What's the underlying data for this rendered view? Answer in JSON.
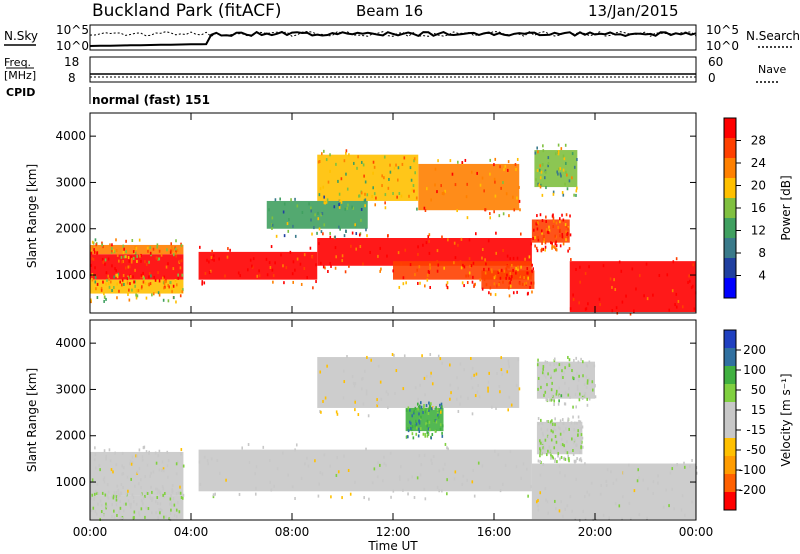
{
  "header": {
    "site": "Buckland Park (fitACF)",
    "beam": "Beam 16",
    "date": "13/Jan/2015"
  },
  "strip_labels": {
    "nsky": "N.Sky",
    "nsearch": "N.Search",
    "freq_line1": "Freq.",
    "freq_line2": "[MHz]",
    "nave": "Nave",
    "cpid": "CPID",
    "cpid_value": "normal (fast) 151",
    "noise_ticks_left": [
      "10^5",
      "10^0"
    ],
    "noise_ticks_right": [
      "10^5",
      "10^0"
    ],
    "freq_ticks": [
      "18",
      "8"
    ],
    "nave_ticks": [
      "60",
      "0"
    ]
  },
  "colors": {
    "power": [
      "#0000ff",
      "#2040a0",
      "#3a7a8a",
      "#40a060",
      "#80c040",
      "#ffc000",
      "#ff8000",
      "#ff4000",
      "#ff0000"
    ],
    "velocity": [
      "#ff0000",
      "#ff6000",
      "#ff9c00",
      "#ffc000",
      "#c8c8c8",
      "#c8c8c8",
      "#80d040",
      "#40b040",
      "#3070a0",
      "#2040c0"
    ],
    "ground": "#c0c0c0"
  },
  "chart_data": [
    {
      "type": "heatmap",
      "name": "power",
      "ylabel": "Slant Range [km]",
      "xlabel": "",
      "x_ticks": [
        "00:00",
        "04:00",
        "08:00",
        "12:00",
        "16:00",
        "20:00",
        "00:00"
      ],
      "xlim_hours": [
        0,
        24
      ],
      "y_ticks": [
        1000,
        2000,
        3000,
        4000
      ],
      "ylim_km": [
        180,
        4500
      ],
      "colorbar_label": "Power [dB]",
      "colorbar_ticks": [
        "28",
        "24",
        "20",
        "16",
        "12",
        "8",
        "4"
      ],
      "colorbar_range": [
        0,
        30
      ],
      "bands": [
        {
          "t0": 0.0,
          "t1": 3.7,
          "r0": 900,
          "r1": 1450,
          "level": 28
        },
        {
          "t0": 0.0,
          "t1": 3.7,
          "r0": 1450,
          "r1": 1650,
          "level": 20
        },
        {
          "t0": 0.0,
          "t1": 3.7,
          "r0": 600,
          "r1": 900,
          "level": 18
        },
        {
          "t0": 4.3,
          "t1": 9.0,
          "r0": 900,
          "r1": 1500,
          "level": 28
        },
        {
          "t0": 9.0,
          "t1": 17.5,
          "r0": 1200,
          "r1": 1800,
          "level": 27
        },
        {
          "t0": 12.0,
          "t1": 17.5,
          "r0": 900,
          "r1": 1300,
          "level": 24
        },
        {
          "t0": 17.5,
          "t1": 19.0,
          "r0": 1700,
          "r1": 2200,
          "level": 26
        },
        {
          "t0": 19.0,
          "t1": 24.0,
          "r0": 200,
          "r1": 1300,
          "level": 28
        },
        {
          "t0": 13.0,
          "t1": 17.0,
          "r0": 2400,
          "r1": 3400,
          "level": 22
        },
        {
          "t0": 9.0,
          "t1": 13.0,
          "r0": 2600,
          "r1": 3600,
          "level": 18
        },
        {
          "t0": 7.0,
          "t1": 11.0,
          "r0": 2000,
          "r1": 2600,
          "level": 12
        },
        {
          "t0": 17.6,
          "t1": 19.3,
          "r0": 2900,
          "r1": 3700,
          "level": 14
        },
        {
          "t0": 15.5,
          "t1": 17.6,
          "r0": 700,
          "r1": 1100,
          "level": 26
        }
      ]
    },
    {
      "type": "heatmap",
      "name": "velocity",
      "ylabel": "Slant Range [km]",
      "xlabel": "Time UT",
      "x_ticks": [
        "00:00",
        "04:00",
        "08:00",
        "12:00",
        "16:00",
        "20:00",
        "00:00"
      ],
      "xlim_hours": [
        0,
        24
      ],
      "y_ticks": [
        1000,
        2000,
        3000,
        4000
      ],
      "ylim_km": [
        180,
        4500
      ],
      "colorbar_label": "Velocity [m s⁻¹]",
      "colorbar_ticks": [
        "200",
        "100",
        "50",
        "15",
        "-15",
        "-50",
        "-100",
        "-200"
      ],
      "colorbar_range": [
        -250,
        250
      ],
      "bands": [
        {
          "t0": 0.0,
          "t1": 3.7,
          "r0": 700,
          "r1": 1650,
          "level": 0
        },
        {
          "t0": 0.0,
          "t1": 3.7,
          "r0": 200,
          "r1": 700,
          "level": 40
        },
        {
          "t0": 4.3,
          "t1": 17.5,
          "r0": 800,
          "r1": 1700,
          "level": 0
        },
        {
          "t0": 17.5,
          "t1": 24.0,
          "r0": 200,
          "r1": 1400,
          "level": 0
        },
        {
          "t0": 9.0,
          "t1": 17.0,
          "r0": 2600,
          "r1": 3700,
          "level": -30
        },
        {
          "t0": 12.5,
          "t1": 14.0,
          "r0": 2100,
          "r1": 2600,
          "level": 120
        },
        {
          "t0": 17.7,
          "t1": 19.5,
          "r0": 1600,
          "r1": 2300,
          "level": 40
        },
        {
          "t0": 17.7,
          "t1": 20.0,
          "r0": 2800,
          "r1": 3600,
          "level": 45
        }
      ]
    }
  ]
}
